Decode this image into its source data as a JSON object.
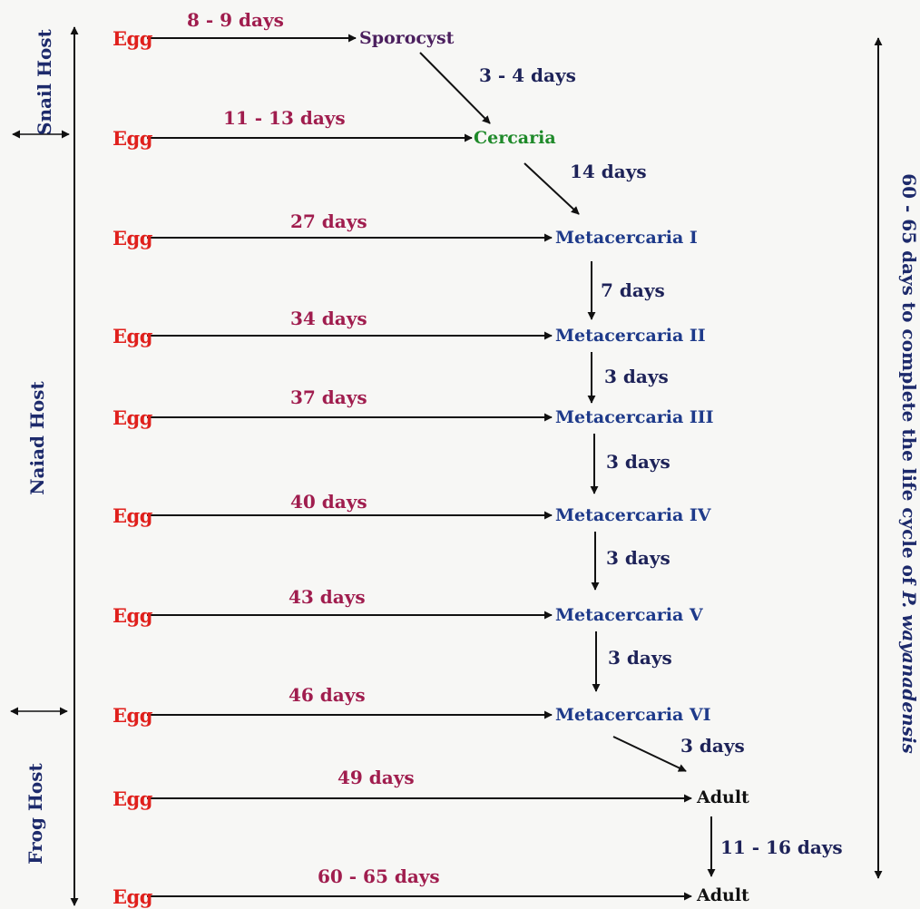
{
  "hosts": {
    "snail": "Snail Host",
    "naiad": "Naiad  Host",
    "frog": "Frog Host"
  },
  "total": {
    "prefix": "60 - 65 days to complete the life cycle of ",
    "species": "P. wayanadensis"
  },
  "rows": [
    {
      "egg": "Egg",
      "days": "8 - 9 days",
      "stage": "Sporocyst"
    },
    {
      "egg": "Egg",
      "days": "11 - 13 days",
      "stage": "Cercaria"
    },
    {
      "egg": "Egg",
      "days": "27 days",
      "stage": "Metacercaria I"
    },
    {
      "egg": "Egg",
      "days": "34 days",
      "stage": "Metacercaria II"
    },
    {
      "egg": "Egg",
      "days": "37 days",
      "stage": "Metacercaria III"
    },
    {
      "egg": "Egg",
      "days": "40 days",
      "stage": "Metacercaria IV"
    },
    {
      "egg": "Egg",
      "days": "43 days",
      "stage": "Metacercaria V"
    },
    {
      "egg": "Egg",
      "days": "46 days",
      "stage": "Metacercaria VI"
    },
    {
      "egg": "Egg",
      "days": "49 days",
      "stage": "Adult"
    },
    {
      "egg": "Egg",
      "days": "60 - 65 days",
      "stage": "Adult"
    }
  ],
  "intervals": [
    "3 - 4 days",
    "14 days",
    "7 days",
    "3 days",
    "3 days",
    "3 days",
    "3 days",
    "3 days",
    "11 - 16 days"
  ],
  "colors": {
    "egg": "#e0201c",
    "duration": "#a01d4e",
    "interval": "#1d2258",
    "metacercaria": "#1e3a8a",
    "sporocyst": "#4b1f5e",
    "cercaria": "#1f8a2a",
    "adult": "#111111",
    "host_label": "#1d2a6b",
    "arrow": "#111111"
  }
}
